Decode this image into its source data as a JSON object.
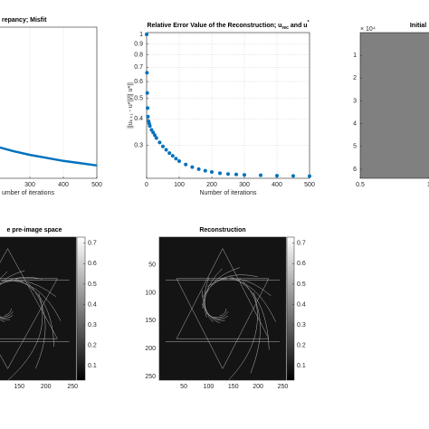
{
  "chart_data": [
    {
      "type": "line",
      "title": "repancy; Misfit",
      "x_label": "umber of iterations",
      "x": [
        200,
        250,
        300,
        350,
        400,
        450,
        500
      ],
      "values": [
        0.21,
        0.18,
        0.155,
        0.135,
        0.115,
        0.1,
        0.085
      ],
      "color": "#0072bd",
      "xlim": [
        0,
        500
      ],
      "xticks": [
        300,
        400,
        500
      ],
      "ylim": [
        0,
        1
      ],
      "grid": true
    },
    {
      "type": "scatter",
      "title": [
        "Relative Error Value of the Reconstruction; u",
        "rec",
        " and u",
        "*"
      ],
      "x_label": "Number of iterations",
      "y_label": "||uₖ₊₁ - u*||/|| u*||",
      "x": [
        0,
        1,
        2,
        3,
        4,
        6,
        8,
        10,
        15,
        20,
        25,
        30,
        40,
        50,
        60,
        70,
        80,
        90,
        100,
        120,
        140,
        160,
        180,
        200,
        225,
        250,
        275,
        300,
        350,
        400,
        450,
        500
      ],
      "values": [
        1,
        0.66,
        0.53,
        0.45,
        0.41,
        0.39,
        0.38,
        0.37,
        0.355,
        0.345,
        0.335,
        0.325,
        0.31,
        0.297,
        0.286,
        0.276,
        0.268,
        0.26,
        0.253,
        0.244,
        0.237,
        0.232,
        0.228,
        0.225,
        0.222,
        0.22,
        0.219,
        0.218,
        0.217,
        0.216,
        0.2155,
        0.215
      ],
      "color": "#0072bd",
      "xlim": [
        0,
        500
      ],
      "xticks": [
        0,
        100,
        200,
        300,
        400,
        500
      ],
      "ylim": [
        0.21,
        1.02
      ],
      "yticks": [
        0.3,
        0.4,
        0.5,
        0.6,
        0.7,
        0.8,
        0.9,
        1
      ],
      "y_scale": "log",
      "grid": true
    },
    {
      "type": "image",
      "title": "Initial",
      "y_multiplier": "× 10⁴",
      "fill": "#808080",
      "xlim": [
        0.5,
        1.5
      ],
      "xticks": [
        0.5,
        1
      ],
      "ylim": [
        0,
        6.4
      ],
      "yticks": [
        1,
        2,
        3,
        4,
        5,
        6
      ]
    },
    {
      "type": "image",
      "title": "e pre-image space",
      "colormap": "gray",
      "xlim": [
        0.5,
        256.5
      ],
      "xticks": [
        150,
        200,
        250
      ],
      "colorbar": {
        "lim": [
          0.03,
          0.73
        ],
        "ticks": [
          0.1,
          0.2,
          0.3,
          0.4,
          0.5,
          0.6,
          0.7
        ]
      }
    },
    {
      "type": "image",
      "title": "Reconstruction",
      "colormap": "gray",
      "xlim": [
        0.5,
        256.5
      ],
      "xticks": [
        50,
        100,
        150,
        200,
        250
      ],
      "ylim": [
        0.5,
        256.5
      ],
      "yticks": [
        50,
        100,
        150,
        200,
        250
      ],
      "colorbar": {
        "lim": [
          0.03,
          0.73
        ],
        "ticks": [
          0.1,
          0.2,
          0.3,
          0.4,
          0.5,
          0.6,
          0.7
        ]
      }
    }
  ]
}
